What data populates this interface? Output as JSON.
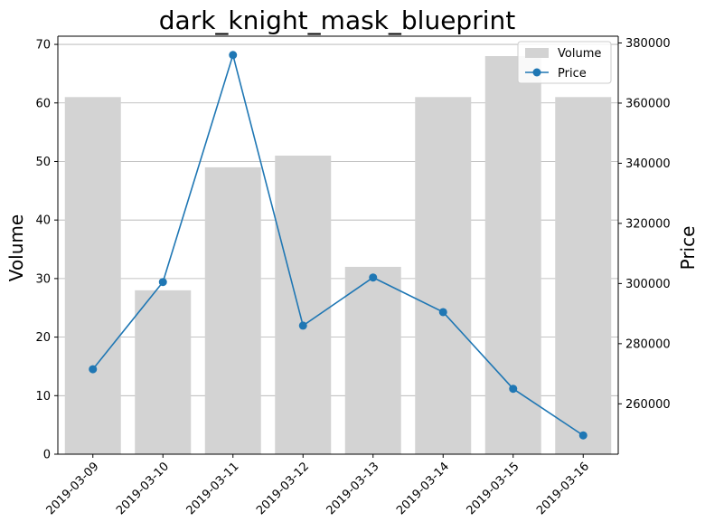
{
  "chart_data": {
    "type": "bar+line",
    "title": "dark_knight_mask_blueprint",
    "xlabel": "",
    "ylabel_left": "Volume",
    "ylabel_right": "Price",
    "categories": [
      "2019-03-09",
      "2019-03-10",
      "2019-03-11",
      "2019-03-12",
      "2019-03-13",
      "2019-03-14",
      "2019-03-15",
      "2019-03-16"
    ],
    "series": [
      {
        "name": "Volume",
        "type": "bar",
        "axis": "left",
        "color": "#d3d3d3",
        "values": [
          61,
          28,
          49,
          51,
          32,
          61,
          68,
          61
        ]
      },
      {
        "name": "Price",
        "type": "line",
        "axis": "right",
        "color": "#1f77b4",
        "values": [
          271500,
          300500,
          376000,
          286000,
          302000,
          290500,
          265000,
          249500
        ]
      }
    ],
    "ylim_left": [
      0,
      71.4
    ],
    "yticks_left": [
      0,
      10,
      20,
      30,
      40,
      50,
      60,
      70
    ],
    "ylim_right": [
      243250,
      382250
    ],
    "yticks_right": [
      260000,
      280000,
      300000,
      320000,
      340000,
      360000,
      380000
    ],
    "grid": "horizontal, left axis",
    "legend_position": "top-right"
  }
}
